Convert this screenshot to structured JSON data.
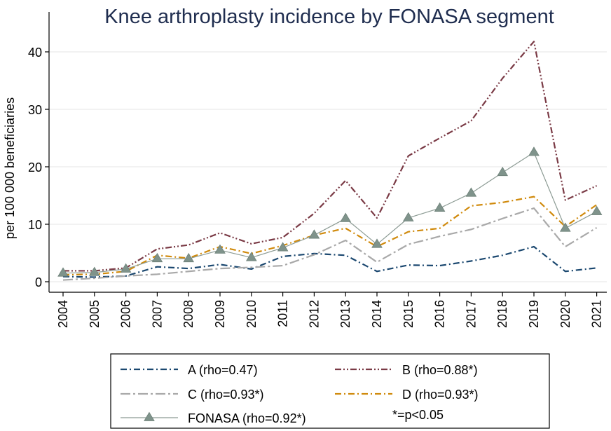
{
  "chart_data": {
    "type": "line",
    "title": "Knee arthroplasty incidence by FONASA segment",
    "ylabel": "per 100 000 beneficiaries",
    "xlabel": "",
    "ylim": [
      0,
      42
    ],
    "yticks": [
      0,
      10,
      20,
      30,
      40
    ],
    "x": [
      "2004",
      "2005",
      "2006",
      "2007",
      "2008",
      "2009",
      "2010",
      "2011",
      "2012",
      "2013",
      "2014",
      "2015",
      "2016",
      "2017",
      "2018",
      "2019",
      "2020",
      "2021"
    ],
    "grid": true,
    "legend_position": "bottom",
    "series": [
      {
        "name": "A (rho=0.47)",
        "color": "#1a476f",
        "dash": "dashdot",
        "values": [
          0.9,
          0.8,
          1.0,
          2.6,
          2.3,
          3.0,
          2.2,
          4.4,
          4.9,
          4.6,
          1.8,
          2.9,
          2.8,
          3.6,
          4.6,
          6.1,
          1.8,
          2.4
        ]
      },
      {
        "name": "B (rho=0.88*)",
        "color": "#7a3a45",
        "dash": "dashdotdot",
        "values": [
          1.9,
          1.9,
          2.4,
          5.7,
          6.4,
          8.5,
          6.6,
          7.7,
          11.9,
          17.6,
          11.1,
          21.9,
          25.0,
          28.0,
          35.4,
          41.8,
          14.2,
          16.7
        ]
      },
      {
        "name": "C (rho=0.93*)",
        "color": "#a9a9a9",
        "dash": "longdashdot",
        "values": [
          0.3,
          0.6,
          1.0,
          1.3,
          1.8,
          2.3,
          2.5,
          2.8,
          4.7,
          7.2,
          3.4,
          6.5,
          7.9,
          9.1,
          11.0,
          12.8,
          6.1,
          9.4
        ]
      },
      {
        "name": "D (rho=0.93*)",
        "color": "#d08a0c",
        "dash": "dashdot",
        "values": [
          1.2,
          1.3,
          1.8,
          4.6,
          4.1,
          6.1,
          4.9,
          6.3,
          8.1,
          9.3,
          6.1,
          8.7,
          9.3,
          13.2,
          13.8,
          14.8,
          9.6,
          13.4
        ]
      },
      {
        "name": "FONASA (rho=0.92*)",
        "color": "#8c9b94",
        "dash": "solid",
        "marker": "triangle",
        "values": [
          1.5,
          1.6,
          2.2,
          4.0,
          4.0,
          5.5,
          4.2,
          5.9,
          8.1,
          11.0,
          6.5,
          11.1,
          12.8,
          15.4,
          19.0,
          22.5,
          9.3,
          12.2
        ]
      }
    ],
    "legend_note": "*=p<0.05"
  }
}
